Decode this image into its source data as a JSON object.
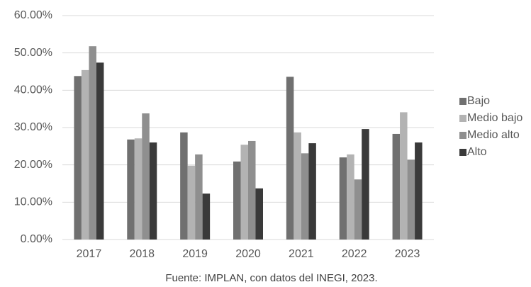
{
  "chart_data": {
    "type": "bar",
    "caption": "Fuente: IMPLAN, con datos del INEGI, 2023.",
    "categories": [
      "2017",
      "2018",
      "2019",
      "2020",
      "2021",
      "2022",
      "2023"
    ],
    "series": [
      {
        "name": "Bajo",
        "color": "#707070",
        "values": [
          43.8,
          26.8,
          28.7,
          20.9,
          43.6,
          22.0,
          28.3
        ]
      },
      {
        "name": "Medio bajo",
        "color": "#b3b3b3",
        "values": [
          45.4,
          27.1,
          19.8,
          25.4,
          28.7,
          22.8,
          34.1
        ]
      },
      {
        "name": "Medio alto",
        "color": "#8f8f8f",
        "values": [
          51.8,
          33.8,
          22.8,
          26.4,
          23.1,
          16.1,
          21.4
        ]
      },
      {
        "name": "Alto",
        "color": "#3a3a3a",
        "values": [
          47.4,
          26.0,
          12.3,
          13.7,
          25.8,
          29.6,
          26.0
        ]
      }
    ],
    "ylim": [
      0,
      60
    ],
    "yticks": [
      {
        "value": 0,
        "label": "0.00%"
      },
      {
        "value": 10,
        "label": "10.00%"
      },
      {
        "value": 20,
        "label": "20.00%"
      },
      {
        "value": 30,
        "label": "30.00%"
      },
      {
        "value": 40,
        "label": "40.00%"
      },
      {
        "value": 50,
        "label": "50.00%"
      },
      {
        "value": 60,
        "label": "60.00%"
      }
    ],
    "grid": true,
    "legend": "right"
  }
}
